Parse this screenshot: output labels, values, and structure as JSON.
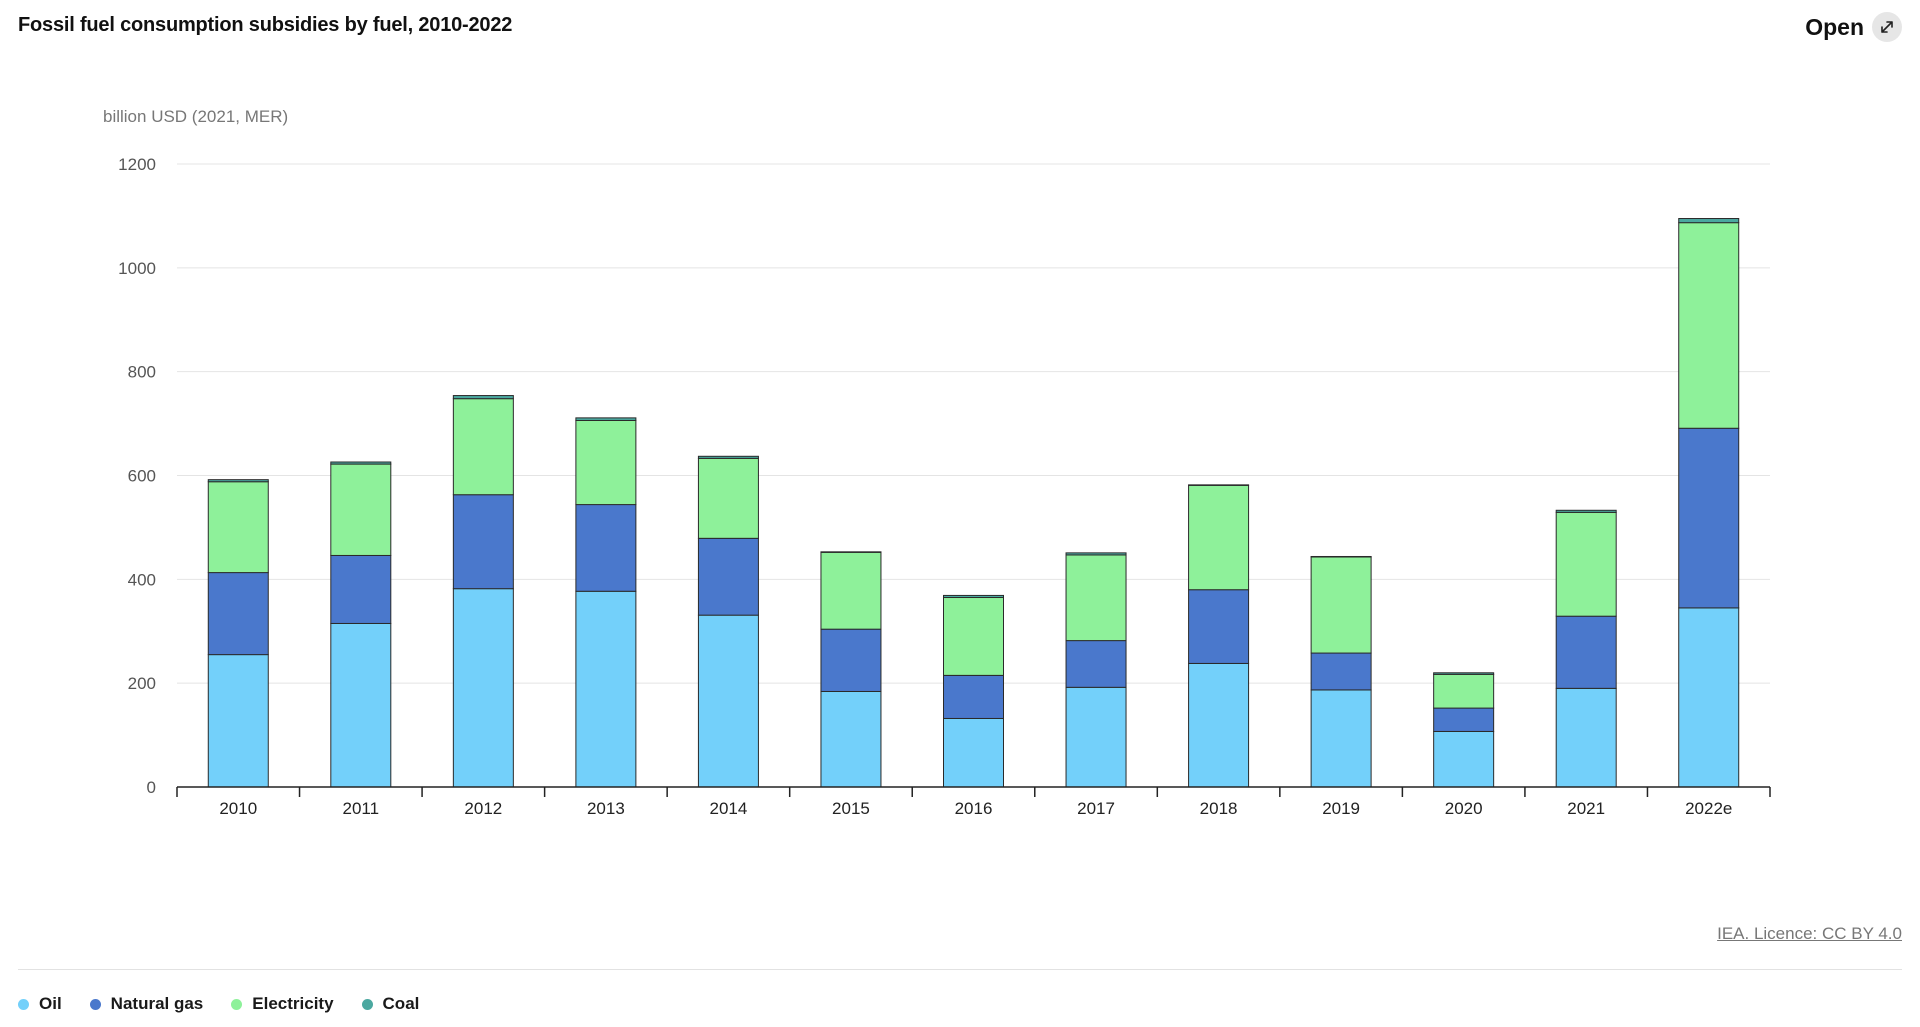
{
  "header": {
    "title": "Fossil fuel consumption subsidies by fuel, 2010-2022",
    "open_label": "Open"
  },
  "footer": {
    "credit": "IEA. Licence: CC BY 4.0"
  },
  "chart_data": {
    "type": "bar",
    "stacked": true,
    "title": "Fossil fuel consumption subsidies by fuel, 2010-2022",
    "ylabel": "billion USD (2021, MER)",
    "xlabel": "",
    "ylim": [
      0,
      1200
    ],
    "yticks": [
      0,
      200,
      400,
      600,
      800,
      1000,
      1200
    ],
    "grid": true,
    "legend_position": "bottom-left",
    "categories": [
      "2010",
      "2011",
      "2012",
      "2013",
      "2014",
      "2015",
      "2016",
      "2017",
      "2018",
      "2019",
      "2020",
      "2021",
      "2022e"
    ],
    "series": [
      {
        "name": "Oil",
        "color": "#73d0fa",
        "values": [
          255,
          315,
          382,
          377,
          331,
          184,
          132,
          192,
          238,
          187,
          107,
          190,
          345
        ]
      },
      {
        "name": "Natural gas",
        "color": "#4a78cc",
        "values": [
          158,
          131,
          181,
          167,
          148,
          120,
          83,
          90,
          142,
          71,
          45,
          139,
          346
        ]
      },
      {
        "name": "Electricity",
        "color": "#8ef19a",
        "values": [
          175,
          176,
          185,
          162,
          154,
          148,
          150,
          165,
          201,
          185,
          65,
          200,
          396
        ]
      },
      {
        "name": "Coal",
        "color": "#4ba8a0",
        "values": [
          4,
          4,
          6,
          5,
          4,
          1,
          4,
          4,
          1,
          1,
          3,
          4,
          8
        ]
      }
    ]
  }
}
